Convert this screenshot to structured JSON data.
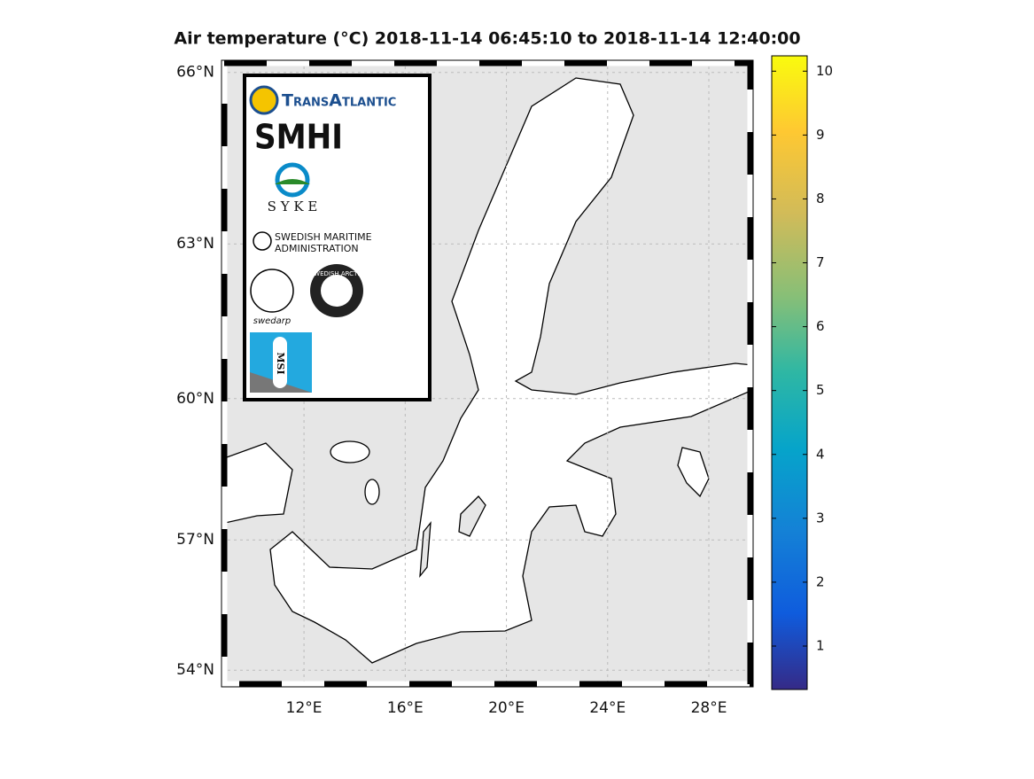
{
  "chart_data": {
    "type": "map",
    "title": "Air temperature (°C)  2018-11-14 06:45:10  to  2018-11-14 12:40:00",
    "xlim": [
      8.74,
      29.75
    ],
    "ylim": [
      53.6,
      66.2
    ],
    "xticks": [
      {
        "value": 12,
        "label": "12°E"
      },
      {
        "value": 16,
        "label": "16°E"
      },
      {
        "value": 20,
        "label": "20°E"
      },
      {
        "value": 24,
        "label": "24°E"
      },
      {
        "value": 28,
        "label": "28°E"
      }
    ],
    "yticks": [
      {
        "value": 54,
        "label": "54°N"
      },
      {
        "value": 57,
        "label": "57°N"
      },
      {
        "value": 60,
        "label": "60°N"
      },
      {
        "value": 63,
        "label": "63°N"
      },
      {
        "value": 66,
        "label": "66°N"
      }
    ],
    "grid": true,
    "colorbar": {
      "lim": [
        0.32,
        10.24
      ],
      "ticks": [
        1,
        2,
        3,
        4,
        5,
        6,
        7,
        8,
        9,
        10
      ]
    },
    "logos": {
      "transatlantic": "TransAtlantic",
      "smhi": "SMHI",
      "syke": "S Y K E",
      "maritime_1": "SWEDISH MARITIME",
      "maritime_2": "ADMINISTRATION",
      "swedarp": "swedarp",
      "arctic": "SWEDISH ARCTIC",
      "msi": "MSI"
    }
  }
}
